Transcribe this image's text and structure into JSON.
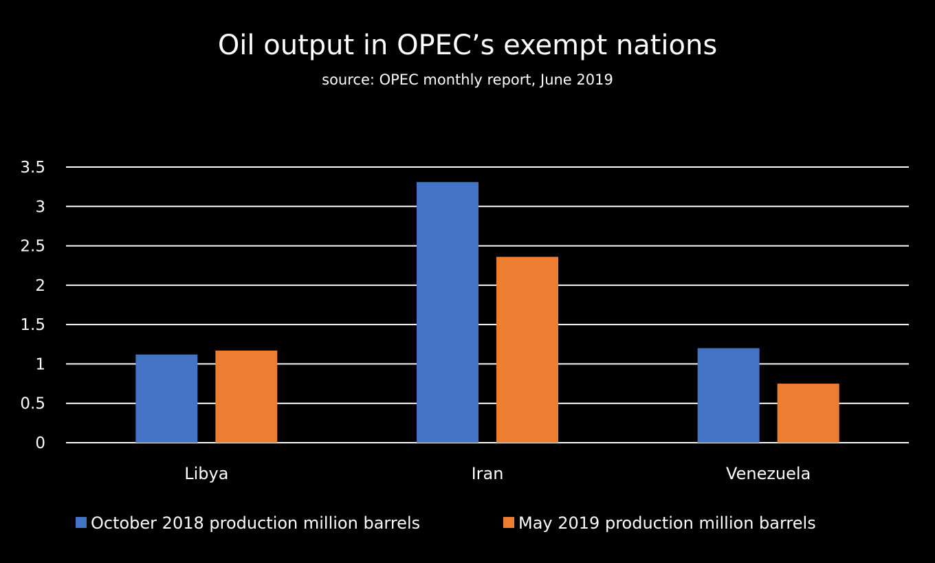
{
  "chart_data": {
    "type": "bar",
    "title": "Oil output in OPEC’s exempt nations",
    "subtitle": "source: OPEC monthly report, June 2019",
    "xlabel": "",
    "ylabel": "",
    "categories": [
      "Libya",
      "Iran",
      "Venezuela"
    ],
    "series": [
      {
        "name": "October 2018 production million barrels",
        "color": "#4472C4",
        "values": [
          1.12,
          3.31,
          1.2
        ]
      },
      {
        "name": "May 2019 production million barrels",
        "color": "#ED7D31",
        "values": [
          1.17,
          2.36,
          0.75
        ]
      }
    ],
    "ylim": [
      0,
      3.5
    ],
    "yticks": [
      0,
      0.5,
      1,
      1.5,
      2,
      2.5,
      3,
      3.5
    ],
    "ytick_labels": [
      "0",
      "0.5",
      "1",
      "1.5",
      "2",
      "2.5",
      "3",
      "3.5"
    ],
    "grid": true,
    "legend_position": "bottom",
    "background": "#000000",
    "text_color": "#FFFFFF",
    "gridline_color": "#FFFFFF"
  }
}
